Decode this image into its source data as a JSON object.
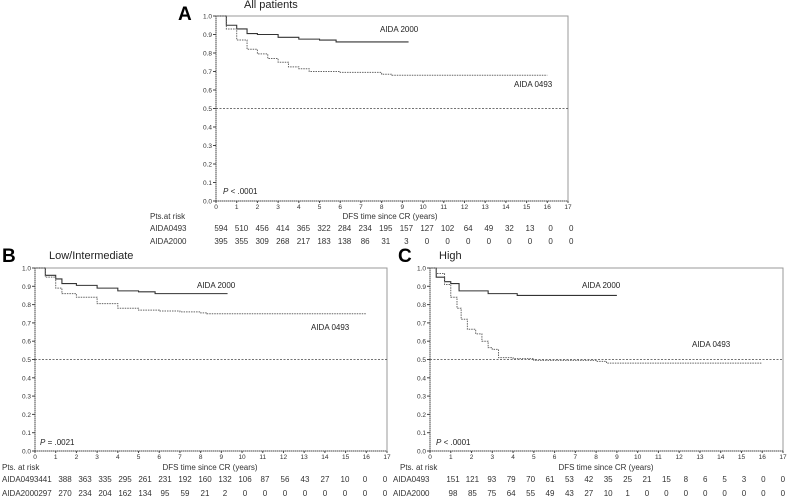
{
  "chart_data": [
    {
      "panel": "A",
      "type": "line",
      "title": "All patients",
      "xlabel": "DFS time since CR (years)",
      "xlim": [
        0,
        17
      ],
      "ylim": [
        0,
        1
      ],
      "xticks": [
        0,
        1,
        2,
        3,
        4,
        5,
        6,
        7,
        8,
        9,
        10,
        11,
        12,
        13,
        14,
        15,
        16,
        17
      ],
      "yticks": [
        "0.0",
        "0.1",
        "0.2",
        "0.3",
        "0.4",
        "0.5",
        "0.6",
        "0.7",
        "0.8",
        "0.9",
        "1.0"
      ],
      "reference_line": 0.5,
      "p_value": "< .0001",
      "series": [
        {
          "name": "AIDA 2000",
          "style": "solid",
          "points": [
            [
              0,
              1
            ],
            [
              0.5,
              0.95
            ],
            [
              1,
              0.93
            ],
            [
              1.5,
              0.905
            ],
            [
              2,
              0.9
            ],
            [
              3,
              0.885
            ],
            [
              4,
              0.875
            ],
            [
              5,
              0.87
            ],
            [
              5.8,
              0.86
            ],
            [
              9.3,
              0.86
            ]
          ]
        },
        {
          "name": "AIDA 0493",
          "style": "dotted",
          "points": [
            [
              0,
              1
            ],
            [
              0.5,
              0.93
            ],
            [
              1,
              0.87
            ],
            [
              1.5,
              0.82
            ],
            [
              2,
              0.795
            ],
            [
              2.5,
              0.77
            ],
            [
              3,
              0.75
            ],
            [
              3.5,
              0.725
            ],
            [
              4,
              0.715
            ],
            [
              4.5,
              0.7
            ],
            [
              6,
              0.695
            ],
            [
              8,
              0.685
            ],
            [
              8.5,
              0.68
            ],
            [
              16,
              0.68
            ]
          ]
        }
      ],
      "risk_table": {
        "header": "Pts.at risk",
        "rows": [
          {
            "label": "AIDA0493",
            "values": [
              594,
              510,
              456,
              414,
              365,
              322,
              284,
              234,
              195,
              157,
              127,
              102,
              64,
              49,
              32,
              13,
              0,
              0
            ]
          },
          {
            "label": "AIDA2000",
            "values": [
              395,
              355,
              309,
              268,
              217,
              183,
              138,
              86,
              31,
              3,
              0,
              0,
              0,
              0,
              0,
              0,
              0,
              0
            ]
          }
        ]
      }
    },
    {
      "panel": "B",
      "type": "line",
      "title": "Low/Intermediate",
      "xlabel": "DFS time since CR (years)",
      "xlim": [
        0,
        17
      ],
      "ylim": [
        0,
        1
      ],
      "xticks": [
        0,
        1,
        2,
        3,
        4,
        5,
        6,
        7,
        8,
        9,
        10,
        11,
        12,
        13,
        14,
        15,
        16,
        17
      ],
      "yticks": [
        "0.0",
        "0.1",
        "0.2",
        "0.3",
        "0.4",
        "0.5",
        "0.6",
        "0.7",
        "0.8",
        "0.9",
        "1.0"
      ],
      "reference_line": 0.5,
      "p_value": "= .0021",
      "series": [
        {
          "name": "AIDA 2000",
          "style": "solid",
          "points": [
            [
              0,
              1
            ],
            [
              0.5,
              0.96
            ],
            [
              1,
              0.94
            ],
            [
              1.3,
              0.915
            ],
            [
              2,
              0.905
            ],
            [
              3,
              0.89
            ],
            [
              4,
              0.875
            ],
            [
              5,
              0.87
            ],
            [
              5.8,
              0.86
            ],
            [
              9.3,
              0.86
            ]
          ]
        },
        {
          "name": "AIDA 0493",
          "style": "dotted",
          "points": [
            [
              0,
              1
            ],
            [
              0.5,
              0.95
            ],
            [
              1,
              0.89
            ],
            [
              1.3,
              0.86
            ],
            [
              2,
              0.84
            ],
            [
              3,
              0.805
            ],
            [
              4,
              0.78
            ],
            [
              5,
              0.77
            ],
            [
              6,
              0.765
            ],
            [
              7,
              0.76
            ],
            [
              8,
              0.755
            ],
            [
              8.3,
              0.75
            ],
            [
              16,
              0.75
            ]
          ]
        }
      ],
      "risk_table": {
        "header": "Pts. at risk",
        "rows": [
          {
            "label": "AIDA0493",
            "values": [
              441,
              388,
              363,
              335,
              295,
              261,
              231,
              192,
              160,
              132,
              106,
              87,
              56,
              43,
              27,
              10,
              0,
              0
            ]
          },
          {
            "label": "AIDA2000",
            "values": [
              297,
              270,
              234,
              204,
              162,
              134,
              95,
              59,
              21,
              2,
              0,
              0,
              0,
              0,
              0,
              0,
              0,
              0
            ]
          }
        ]
      }
    },
    {
      "panel": "C",
      "type": "line",
      "title": "High",
      "xlabel": "DFS time since CR (years)",
      "xlim": [
        0,
        17
      ],
      "ylim": [
        0,
        1
      ],
      "xticks": [
        0,
        1,
        2,
        3,
        4,
        5,
        6,
        7,
        8,
        9,
        10,
        11,
        12,
        13,
        14,
        15,
        16,
        17
      ],
      "yticks": [
        "0.0",
        "0.1",
        "0.2",
        "0.3",
        "0.4",
        "0.5",
        "0.6",
        "0.7",
        "0.8",
        "0.9",
        "1.0"
      ],
      "reference_line": 0.5,
      "p_value": "< .0001",
      "series": [
        {
          "name": "AIDA 2000",
          "style": "solid",
          "points": [
            [
              0,
              1
            ],
            [
              0.3,
              0.95
            ],
            [
              0.7,
              0.925
            ],
            [
              1,
              0.915
            ],
            [
              1.4,
              0.875
            ],
            [
              2.5,
              0.875
            ],
            [
              2.8,
              0.86
            ],
            [
              4.2,
              0.85
            ],
            [
              9,
              0.85
            ]
          ]
        },
        {
          "name": "AIDA 0493",
          "style": "dotted",
          "points": [
            [
              0,
              1
            ],
            [
              0.3,
              0.97
            ],
            [
              0.7,
              0.91
            ],
            [
              1,
              0.84
            ],
            [
              1.3,
              0.78
            ],
            [
              1.5,
              0.72
            ],
            [
              1.8,
              0.665
            ],
            [
              2.2,
              0.64
            ],
            [
              2.5,
              0.6
            ],
            [
              2.8,
              0.565
            ],
            [
              3,
              0.555
            ],
            [
              3.3,
              0.51
            ],
            [
              4,
              0.505
            ],
            [
              5,
              0.495
            ],
            [
              6,
              0.495
            ],
            [
              8,
              0.49
            ],
            [
              8.5,
              0.48
            ],
            [
              16,
              0.48
            ]
          ]
        }
      ],
      "risk_table": {
        "header": "Pts. at risk",
        "rows": [
          {
            "label": "AIDA0493",
            "values": [
              151,
              121,
              93,
              79,
              70,
              61,
              53,
              42,
              35,
              25,
              21,
              15,
              8,
              6,
              5,
              3,
              0,
              0
            ]
          },
          {
            "label": "AIDA2000",
            "values": [
              98,
              85,
              75,
              64,
              55,
              49,
              43,
              27,
              10,
              1,
              0,
              0,
              0,
              0,
              0,
              0,
              0,
              0
            ]
          }
        ]
      }
    }
  ],
  "colors": {
    "axis": "#888888",
    "curve_solid": "#333333",
    "curve_dotted": "#666666",
    "text": "#222222"
  }
}
